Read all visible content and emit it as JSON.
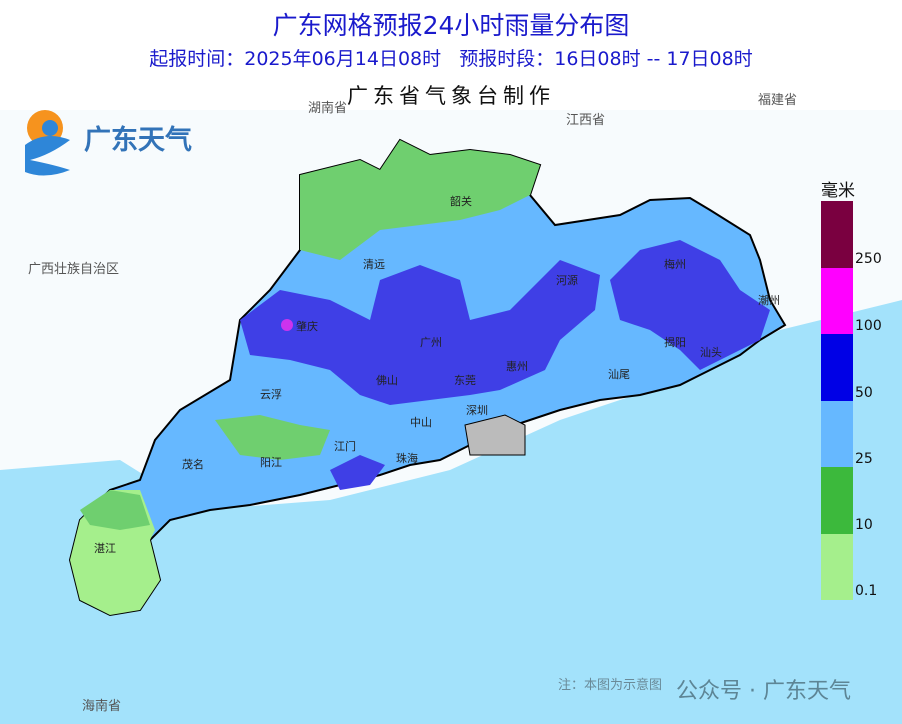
{
  "header": {
    "title": "广东网格预报24小时雨量分布图",
    "subtitle": "起报时间：2025年06月14日08时   预报时段：16日08时 -- 17日08时",
    "producer": "广东省气象台制作"
  },
  "logo": {
    "text": "广东天气",
    "icon": "sun-cloud-logo-icon"
  },
  "regions": [
    "湖南省",
    "江西省",
    "福建省",
    "广西壮族自治区",
    "海南省"
  ],
  "cities": [
    "韶关",
    "清远",
    "河源",
    "梅州",
    "潮州",
    "肇庆",
    "广州",
    "揭阳",
    "汕头",
    "佛山",
    "东莞",
    "惠州",
    "汕尾",
    "云浮",
    "深圳",
    "中山",
    "江门",
    "阳江",
    "珠海",
    "茂名",
    "湛江"
  ],
  "legend": {
    "unit": "毫米",
    "bins": [
      {
        "color": "#7a0040"
      },
      {
        "color": "#ff00ff"
      },
      {
        "color": "#0000e6"
      },
      {
        "color": "#66b8ff"
      },
      {
        "color": "#3cb93c"
      },
      {
        "color": "#a5ef8c"
      }
    ],
    "labels": [
      "250",
      "100",
      "50",
      "25",
      "10",
      "0.1"
    ]
  },
  "colors": {
    "sea": "#a3e2fb",
    "land_outside": "#ffffff",
    "light_rain": "#a5ef8c",
    "moderate": "#3cb93c",
    "heavy": "#66b8ff",
    "rainstorm": "#0000e6",
    "heavy_rainstorm": "#ff00ff"
  },
  "footer": {
    "note": "注：本图为示意图",
    "watermark": "公众号 · 广东天气"
  }
}
